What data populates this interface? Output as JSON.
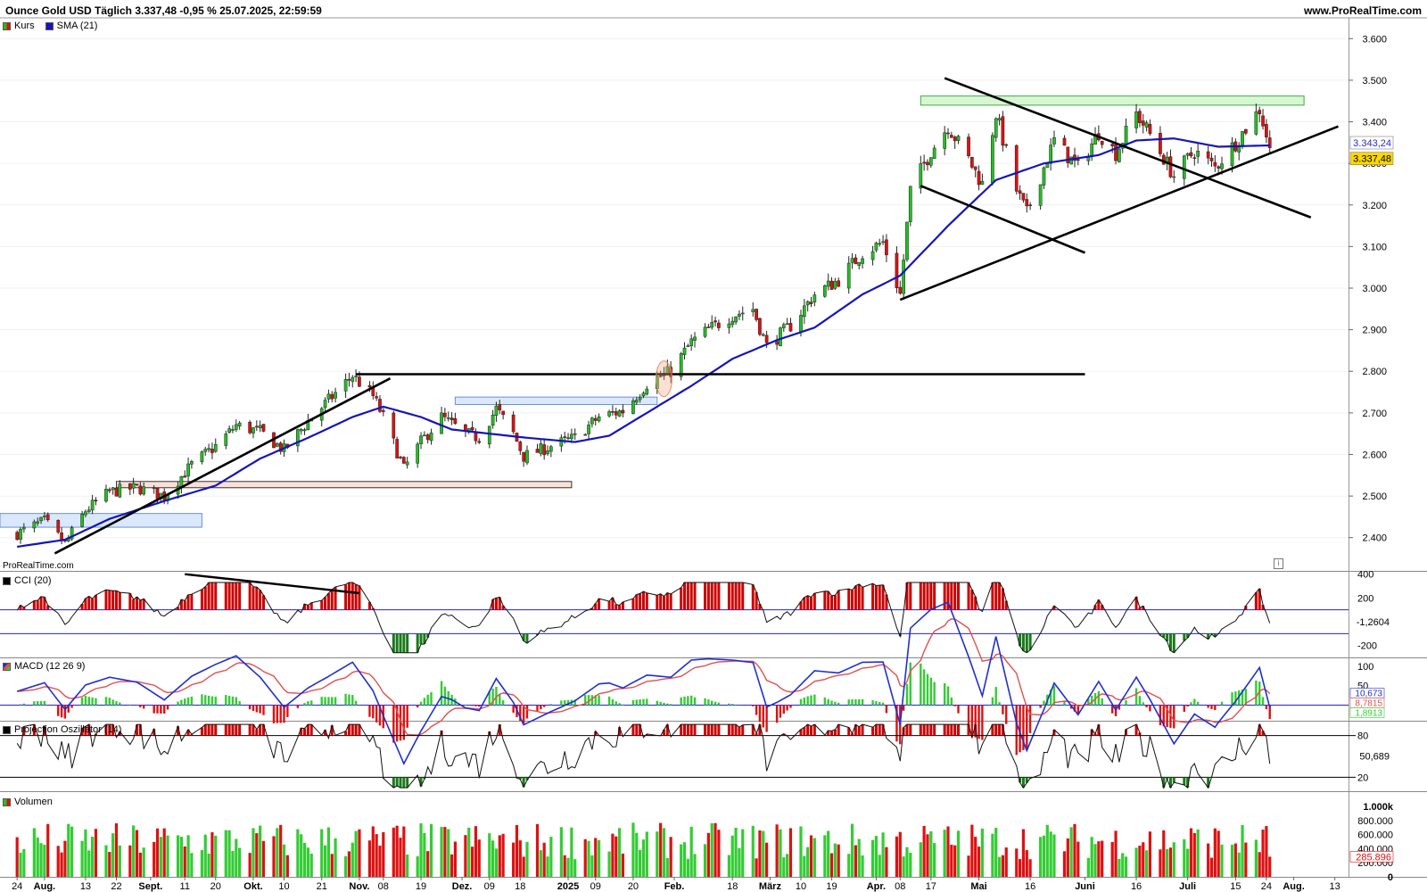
{
  "header": {
    "title": "Ounce Gold USD Täglich 3.337,48 -0,95 % 25.07.2025, 22:59:59",
    "website": "www.ProRealTime.com",
    "watermark": "ProRealTime.com",
    "info_icon": "i"
  },
  "colors": {
    "up": "#22c022",
    "down": "#dd1111",
    "sma": "#1515b8",
    "cci_fill_up": "#cc0000",
    "cci_fill_down": "#1a7a1a",
    "macd_line": "#1f2fd0",
    "signal_line": "#e05050",
    "hist_up": "#33cc33",
    "hist_down": "#dd1111",
    "projection_line": "#111111",
    "price_tag_sma": "#2a2ad0",
    "price_tag_last": "#ffd700"
  },
  "price_panel": {
    "legend": [
      {
        "label": "Kurs",
        "icon": "candle-swatch-icon"
      },
      {
        "label": "SMA (21)",
        "icon": "sma-swatch-icon"
      }
    ],
    "y_ticks": [
      "3.600",
      "3.500",
      "3.400",
      "3.300",
      "3.200",
      "3.100",
      "3.000",
      "2.900",
      "2.800",
      "2.700",
      "2.600",
      "2.500",
      "2.400"
    ],
    "sma_label": "3.343,24",
    "last_label": "3.337,48"
  },
  "cci_panel": {
    "legend": "CCI (20)",
    "y_ticks": [
      "400",
      "200",
      "-200"
    ],
    "value_label": "-1,2604",
    "levels": [
      100,
      -100
    ]
  },
  "macd_panel": {
    "legend": "MACD (12 26 9)",
    "y_ticks": [
      "100",
      "50"
    ],
    "labels": [
      "10,673",
      "8,7815",
      "1,8913"
    ]
  },
  "projection_panel": {
    "legend": "Projection Oszillator (14)",
    "y_ticks": [
      "80",
      "20"
    ],
    "value_label": "50,689",
    "levels": [
      80,
      20
    ]
  },
  "volume_panel": {
    "legend": "Volumen",
    "y_ticks": [
      "1.000k",
      "800.000",
      "600.000",
      "400.000",
      "200.000",
      "0"
    ],
    "value_label": "285.896"
  },
  "x_labels": [
    "24",
    "Aug.",
    "13",
    "22",
    "Sept.",
    "11",
    "20",
    "Okt.",
    "10",
    "21",
    "Nov.",
    "08",
    "19",
    "Dez.",
    "09",
    "18",
    "2025",
    "09",
    "20",
    "Feb.",
    "18",
    "März",
    "10",
    "19",
    "Apr.",
    "08",
    "17",
    "Mai",
    "16",
    "Juni",
    "16",
    "Juli",
    "15",
    "24",
    "Aug.",
    "13"
  ],
  "chart_data": {
    "type": "candlestick",
    "title": "Ounce Gold USD Täglich",
    "series": [
      {
        "name": "Kurs",
        "points": [
          [
            "2024-07-24",
            2410
          ],
          [
            "2024-08-01",
            2440
          ],
          [
            "2024-08-07",
            2385
          ],
          [
            "2024-08-13",
            2465
          ],
          [
            "2024-08-20",
            2510
          ],
          [
            "2024-08-28",
            2520
          ],
          [
            "2024-09-05",
            2500
          ],
          [
            "2024-09-13",
            2575
          ],
          [
            "2024-09-20",
            2620
          ],
          [
            "2024-09-26",
            2670
          ],
          [
            "2024-10-03",
            2655
          ],
          [
            "2024-10-10",
            2610
          ],
          [
            "2024-10-17",
            2680
          ],
          [
            "2024-10-23",
            2730
          ],
          [
            "2024-10-30",
            2790
          ],
          [
            "2024-11-05",
            2740
          ],
          [
            "2024-11-08",
            2690
          ],
          [
            "2024-11-14",
            2565
          ],
          [
            "2024-11-19",
            2630
          ],
          [
            "2024-11-25",
            2690
          ],
          [
            "2024-12-02",
            2650
          ],
          [
            "2024-12-06",
            2640
          ],
          [
            "2024-12-11",
            2710
          ],
          [
            "2024-12-16",
            2650
          ],
          [
            "2024-12-19",
            2595
          ],
          [
            "2024-12-27",
            2620
          ],
          [
            "2025-01-03",
            2640
          ],
          [
            "2025-01-10",
            2690
          ],
          [
            "2025-01-17",
            2705
          ],
          [
            "2025-01-24",
            2770
          ],
          [
            "2025-01-31",
            2800
          ],
          [
            "2025-02-06",
            2870
          ],
          [
            "2025-02-11",
            2900
          ],
          [
            "2025-02-18",
            2935
          ],
          [
            "2025-02-24",
            2950
          ],
          [
            "2025-02-28",
            2860
          ],
          [
            "2025-03-07",
            2910
          ],
          [
            "2025-03-14",
            2985
          ],
          [
            "2025-03-21",
            3020
          ],
          [
            "2025-03-28",
            3085
          ],
          [
            "2025-04-03",
            3110
          ],
          [
            "2025-04-08",
            2985
          ],
          [
            "2025-04-11",
            3235
          ],
          [
            "2025-04-17",
            3330
          ],
          [
            "2025-04-22",
            3390
          ],
          [
            "2025-04-28",
            3310
          ],
          [
            "2025-05-02",
            3250
          ],
          [
            "2025-05-06",
            3420
          ],
          [
            "2025-05-12",
            3235
          ],
          [
            "2025-05-15",
            3180
          ],
          [
            "2025-05-20",
            3290
          ],
          [
            "2025-05-23",
            3355
          ],
          [
            "2025-05-30",
            3290
          ],
          [
            "2025-06-05",
            3375
          ],
          [
            "2025-06-10",
            3325
          ],
          [
            "2025-06-16",
            3420
          ],
          [
            "2025-06-20",
            3370
          ],
          [
            "2025-06-27",
            3270
          ],
          [
            "2025-07-03",
            3330
          ],
          [
            "2025-07-09",
            3290
          ],
          [
            "2025-07-15",
            3350
          ],
          [
            "2025-07-22",
            3430
          ],
          [
            "2025-07-25",
            3337.48
          ]
        ]
      },
      {
        "name": "SMA (21)",
        "points": [
          [
            "2024-07-24",
            2378
          ],
          [
            "2024-08-07",
            2395
          ],
          [
            "2024-08-20",
            2445
          ],
          [
            "2024-09-05",
            2488
          ],
          [
            "2024-09-20",
            2525
          ],
          [
            "2024-10-03",
            2590
          ],
          [
            "2024-10-17",
            2640
          ],
          [
            "2024-10-30",
            2690
          ],
          [
            "2024-11-08",
            2715
          ],
          [
            "2024-11-19",
            2690
          ],
          [
            "2024-11-28",
            2660
          ],
          [
            "2024-12-09",
            2650
          ],
          [
            "2024-12-20",
            2640
          ],
          [
            "2025-01-03",
            2630
          ],
          [
            "2025-01-13",
            2645
          ],
          [
            "2025-01-24",
            2700
          ],
          [
            "2025-02-06",
            2765
          ],
          [
            "2025-02-18",
            2830
          ],
          [
            "2025-03-03",
            2875
          ],
          [
            "2025-03-14",
            2905
          ],
          [
            "2025-03-28",
            2985
          ],
          [
            "2025-04-08",
            3030
          ],
          [
            "2025-04-22",
            3150
          ],
          [
            "2025-05-06",
            3260
          ],
          [
            "2025-05-20",
            3300
          ],
          [
            "2025-06-05",
            3320
          ],
          [
            "2025-06-16",
            3355
          ],
          [
            "2025-06-27",
            3360
          ],
          [
            "2025-07-10",
            3340
          ],
          [
            "2025-07-25",
            3343.24
          ]
        ]
      }
    ],
    "ylim": [
      2320,
      3650
    ],
    "xlim": [
      "2024-07-19",
      "2025-08-17"
    ],
    "drawings": [
      {
        "type": "horizontal-line",
        "y": 2793,
        "x_start": "2024-10-31",
        "x_end": "2025-06-01"
      },
      {
        "type": "trendline",
        "from": [
          "2024-08-04",
          2362
        ],
        "to": [
          "2024-11-10",
          2783
        ]
      },
      {
        "type": "trendline",
        "from": [
          "2025-04-08",
          2972
        ],
        "to": [
          "2025-08-14",
          3389
        ]
      },
      {
        "type": "trendline",
        "from": [
          "2025-04-21",
          3505
        ],
        "to": [
          "2025-08-06",
          3170
        ]
      },
      {
        "type": "trendline",
        "from": [
          "2025-04-14",
          3246
        ],
        "to": [
          "2025-06-01",
          3085
        ]
      },
      {
        "type": "zone",
        "y": [
          2425,
          2458
        ],
        "x_start": "2024-07-19",
        "x_end": "2024-09-16",
        "color": "blue"
      },
      {
        "type": "zone",
        "y": [
          2520,
          2535
        ],
        "x_start": "2024-08-22",
        "x_end": "2025-01-02",
        "color": "red"
      },
      {
        "type": "zone",
        "y": [
          2720,
          2738
        ],
        "x_start": "2024-11-29",
        "x_end": "2025-01-27",
        "color": "blue"
      },
      {
        "type": "zone",
        "y": [
          3440,
          3462
        ],
        "x_start": "2025-04-14",
        "x_end": "2025-08-04",
        "color": "green"
      }
    ],
    "cci": {
      "ylim": [
        -300,
        420
      ],
      "levels": [
        100,
        -100
      ],
      "last": -1.2604
    },
    "macd": {
      "macd_last": 10.673,
      "signal_last": 8.7815,
      "hist_last": 1.8913
    },
    "projection": {
      "levels": [
        80,
        20
      ],
      "last": 50.689
    },
    "volume": {
      "last": 285896,
      "ylim": [
        0,
        1050000
      ]
    }
  }
}
